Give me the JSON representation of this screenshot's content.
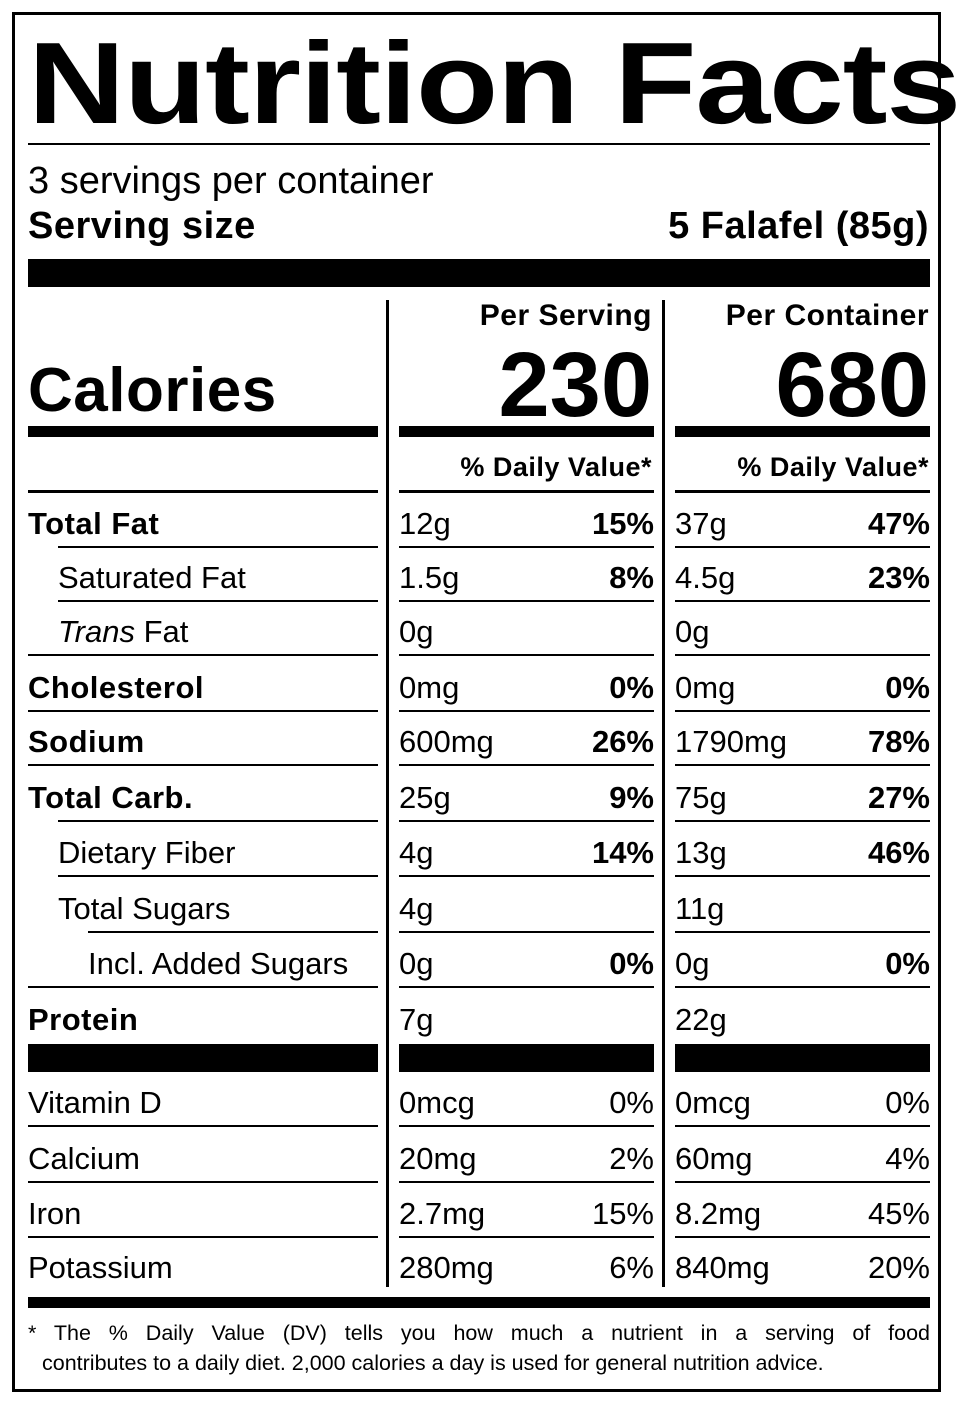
{
  "title": "Nutrition Facts",
  "servings_per_container": "3 servings per container",
  "serving_size": {
    "label": "Serving size",
    "value": "5 Falafel (85g)"
  },
  "columns": [
    {
      "header": "Per Serving",
      "calories": "230",
      "dv_header": "% Daily Value*"
    },
    {
      "header": "Per Container",
      "calories": "680",
      "dv_header": "% Daily Value*"
    }
  ],
  "calories_label": "Calories",
  "nutrients": [
    {
      "label": "Total Fat",
      "style": "bold",
      "serving": {
        "amount": "12g",
        "dv": "15%"
      },
      "container": {
        "amount": "37g",
        "dv": "47%"
      }
    },
    {
      "label": "Saturated Fat",
      "style": "indent1",
      "serving": {
        "amount": "1.5g",
        "dv": "8%"
      },
      "container": {
        "amount": "4.5g",
        "dv": "23%"
      }
    },
    {
      "label_italic": "Trans",
      "label": " Fat",
      "style": "indent1",
      "serving": {
        "amount": "0g",
        "dv": ""
      },
      "container": {
        "amount": "0g",
        "dv": ""
      }
    },
    {
      "label": "Cholesterol",
      "style": "bold",
      "serving": {
        "amount": "0mg",
        "dv": "0%"
      },
      "container": {
        "amount": "0mg",
        "dv": "0%"
      }
    },
    {
      "label": "Sodium",
      "style": "bold",
      "serving": {
        "amount": "600mg",
        "dv": "26%"
      },
      "container": {
        "amount": "1790mg",
        "dv": "78%"
      }
    },
    {
      "label": "Total Carb.",
      "style": "bold",
      "serving": {
        "amount": "25g",
        "dv": "9%"
      },
      "container": {
        "amount": "75g",
        "dv": "27%"
      }
    },
    {
      "label": "Dietary Fiber",
      "style": "indent1",
      "serving": {
        "amount": "4g",
        "dv": "14%"
      },
      "container": {
        "amount": "13g",
        "dv": "46%"
      }
    },
    {
      "label": "Total Sugars",
      "style": "indent1",
      "serving": {
        "amount": "4g",
        "dv": ""
      },
      "container": {
        "amount": "11g",
        "dv": ""
      }
    },
    {
      "label": "Incl. Added Sugars",
      "style": "indent2",
      "serving": {
        "amount": "0g",
        "dv": "0%"
      },
      "container": {
        "amount": "0g",
        "dv": "0%"
      }
    },
    {
      "label": "Protein",
      "style": "bold",
      "serving": {
        "amount": "7g",
        "dv": ""
      },
      "container": {
        "amount": "22g",
        "dv": ""
      }
    }
  ],
  "vitamins": [
    {
      "label": "Vitamin D",
      "serving": {
        "amount": "0mcg",
        "dv": "0%"
      },
      "container": {
        "amount": "0mcg",
        "dv": "0%"
      }
    },
    {
      "label": "Calcium",
      "serving": {
        "amount": "20mg",
        "dv": "2%"
      },
      "container": {
        "amount": "60mg",
        "dv": "4%"
      }
    },
    {
      "label": "Iron",
      "serving": {
        "amount": "2.7mg",
        "dv": "15%"
      },
      "container": {
        "amount": "8.2mg",
        "dv": "45%"
      }
    },
    {
      "label": "Potassium",
      "serving": {
        "amount": "280mg",
        "dv": "6%"
      },
      "container": {
        "amount": "840mg",
        "dv": "20%"
      }
    }
  ],
  "footnote": {
    "line1": "* The % Daily Value (DV) tells you how much a nutrient in a serving of food",
    "line2": "contributes to a daily diet. 2,000 calories a day is used for general nutrition advice."
  }
}
